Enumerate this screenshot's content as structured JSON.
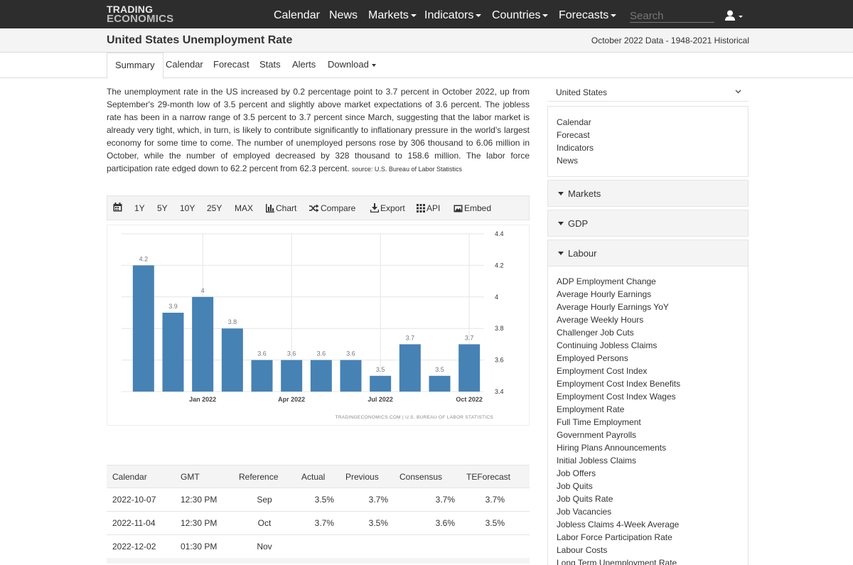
{
  "logo": {
    "line1": "TRADING",
    "line2": "ECONOMICS"
  },
  "nav": {
    "items": [
      {
        "label": "Calendar",
        "dropdown": false
      },
      {
        "label": "News",
        "dropdown": false
      },
      {
        "label": "Markets",
        "dropdown": true
      },
      {
        "label": "Indicators",
        "dropdown": true
      },
      {
        "label": "Countries",
        "dropdown": true
      },
      {
        "label": "Forecasts",
        "dropdown": true
      }
    ],
    "search_placeholder": "Search"
  },
  "header": {
    "title": "United States Unemployment Rate",
    "data_range": "October 2022 Data - 1948-2021 Historical"
  },
  "tabs": [
    {
      "label": "Summary",
      "active": true
    },
    {
      "label": "Calendar"
    },
    {
      "label": "Forecast"
    },
    {
      "label": "Stats"
    },
    {
      "label": "Alerts"
    },
    {
      "label": "Download",
      "dropdown": true
    }
  ],
  "summary": {
    "text": "The unemployment rate in the US increased by 0.2 percentage point to 3.7 percent in October 2022, up from September's 29-month low of 3.5 percent and slightly above market expectations of 3.6 percent. The jobless rate has been in a narrow range of 3.5 percent to 3.7 percent since March, suggesting that the labor market is already very tight, which, in turn, is likely to contribute significantly to inflationary pressure in the world's largest economy for some time to come. The number of unemployed persons rose by 306 thousand to 6.06 million in October, while the number of employed decreased by 328 thousand to 158.6 million. The labor force participation rate edged down to 62.2 percent from 62.3 percent.",
    "source": "source: U.S. Bureau of Labor Statistics"
  },
  "chart_toolbar": {
    "ranges": [
      "1Y",
      "5Y",
      "10Y",
      "25Y",
      "MAX"
    ],
    "chart": "Chart",
    "compare": "Compare",
    "export": "Export",
    "api": "API",
    "embed": "Embed"
  },
  "chart_data": {
    "type": "bar",
    "categories": [
      "Nov 2021",
      "Dec 2021",
      "Jan 2022",
      "Feb 2022",
      "Mar 2022",
      "Apr 2022",
      "May 2022",
      "Jun 2022",
      "Jul 2022",
      "Aug 2022",
      "Sep 2022",
      "Oct 2022"
    ],
    "values": [
      4.2,
      3.9,
      4.0,
      3.8,
      3.6,
      3.6,
      3.6,
      3.6,
      3.5,
      3.7,
      3.5,
      3.7
    ],
    "data_labels": [
      "4.2",
      "3.9",
      "4",
      "3.8",
      "3.6",
      "3.6",
      "3.6",
      "3.6",
      "3.5",
      "3.7",
      "3.5",
      "3.7"
    ],
    "x_tick_labels": [
      {
        "index": 2,
        "label": "Jan 2022"
      },
      {
        "index": 5,
        "label": "Apr 2022"
      },
      {
        "index": 8,
        "label": "Jul 2022"
      },
      {
        "index": 11,
        "label": "Oct 2022"
      }
    ],
    "y_ticks": [
      3.4,
      3.6,
      3.8,
      4,
      4.2,
      4.4
    ],
    "ylim": [
      3.4,
      4.4
    ],
    "y_axis_side": "right",
    "grid": true,
    "bar_color": "#4682b4",
    "credit": "TRADINGECONOMICS.COM  |  U.S. BUREAU OF LABOR STATISTICS"
  },
  "calendar_table": {
    "headers": [
      "Calendar",
      "GMT",
      "Reference",
      "Actual",
      "Previous",
      "Consensus",
      "TEForecast"
    ],
    "rows": [
      [
        "2022-10-07",
        "12:30 PM",
        "Sep",
        "3.5%",
        "3.7%",
        "3.7%",
        "3.7%"
      ],
      [
        "2022-11-04",
        "12:30 PM",
        "Oct",
        "3.7%",
        "3.5%",
        "3.6%",
        "3.5%"
      ],
      [
        "2022-12-02",
        "01:30 PM",
        "Nov",
        "",
        "",
        "",
        ""
      ]
    ]
  },
  "sidebar": {
    "country": "United States",
    "links": [
      "Calendar",
      "Forecast",
      "Indicators",
      "News"
    ],
    "sections": [
      "Markets",
      "GDP",
      "Labour"
    ],
    "labour_items": [
      "ADP Employment Change",
      "Average Hourly Earnings",
      "Average Hourly Earnings YoY",
      "Average Weekly Hours",
      "Challenger Job Cuts",
      "Continuing Jobless Claims",
      "Employed Persons",
      "Employment Cost Index",
      "Employment Cost Index Benefits",
      "Employment Cost Index Wages",
      "Employment Rate",
      "Full Time Employment",
      "Government Payrolls",
      "Hiring Plans Announcements",
      "Initial Jobless Claims",
      "Job Offers",
      "Job Quits",
      "Job Quits Rate",
      "Job Vacancies",
      "Jobless Claims 4-Week Average",
      "Labor Force Participation Rate",
      "Labour Costs",
      "Long Term Unemployment Rate"
    ]
  }
}
